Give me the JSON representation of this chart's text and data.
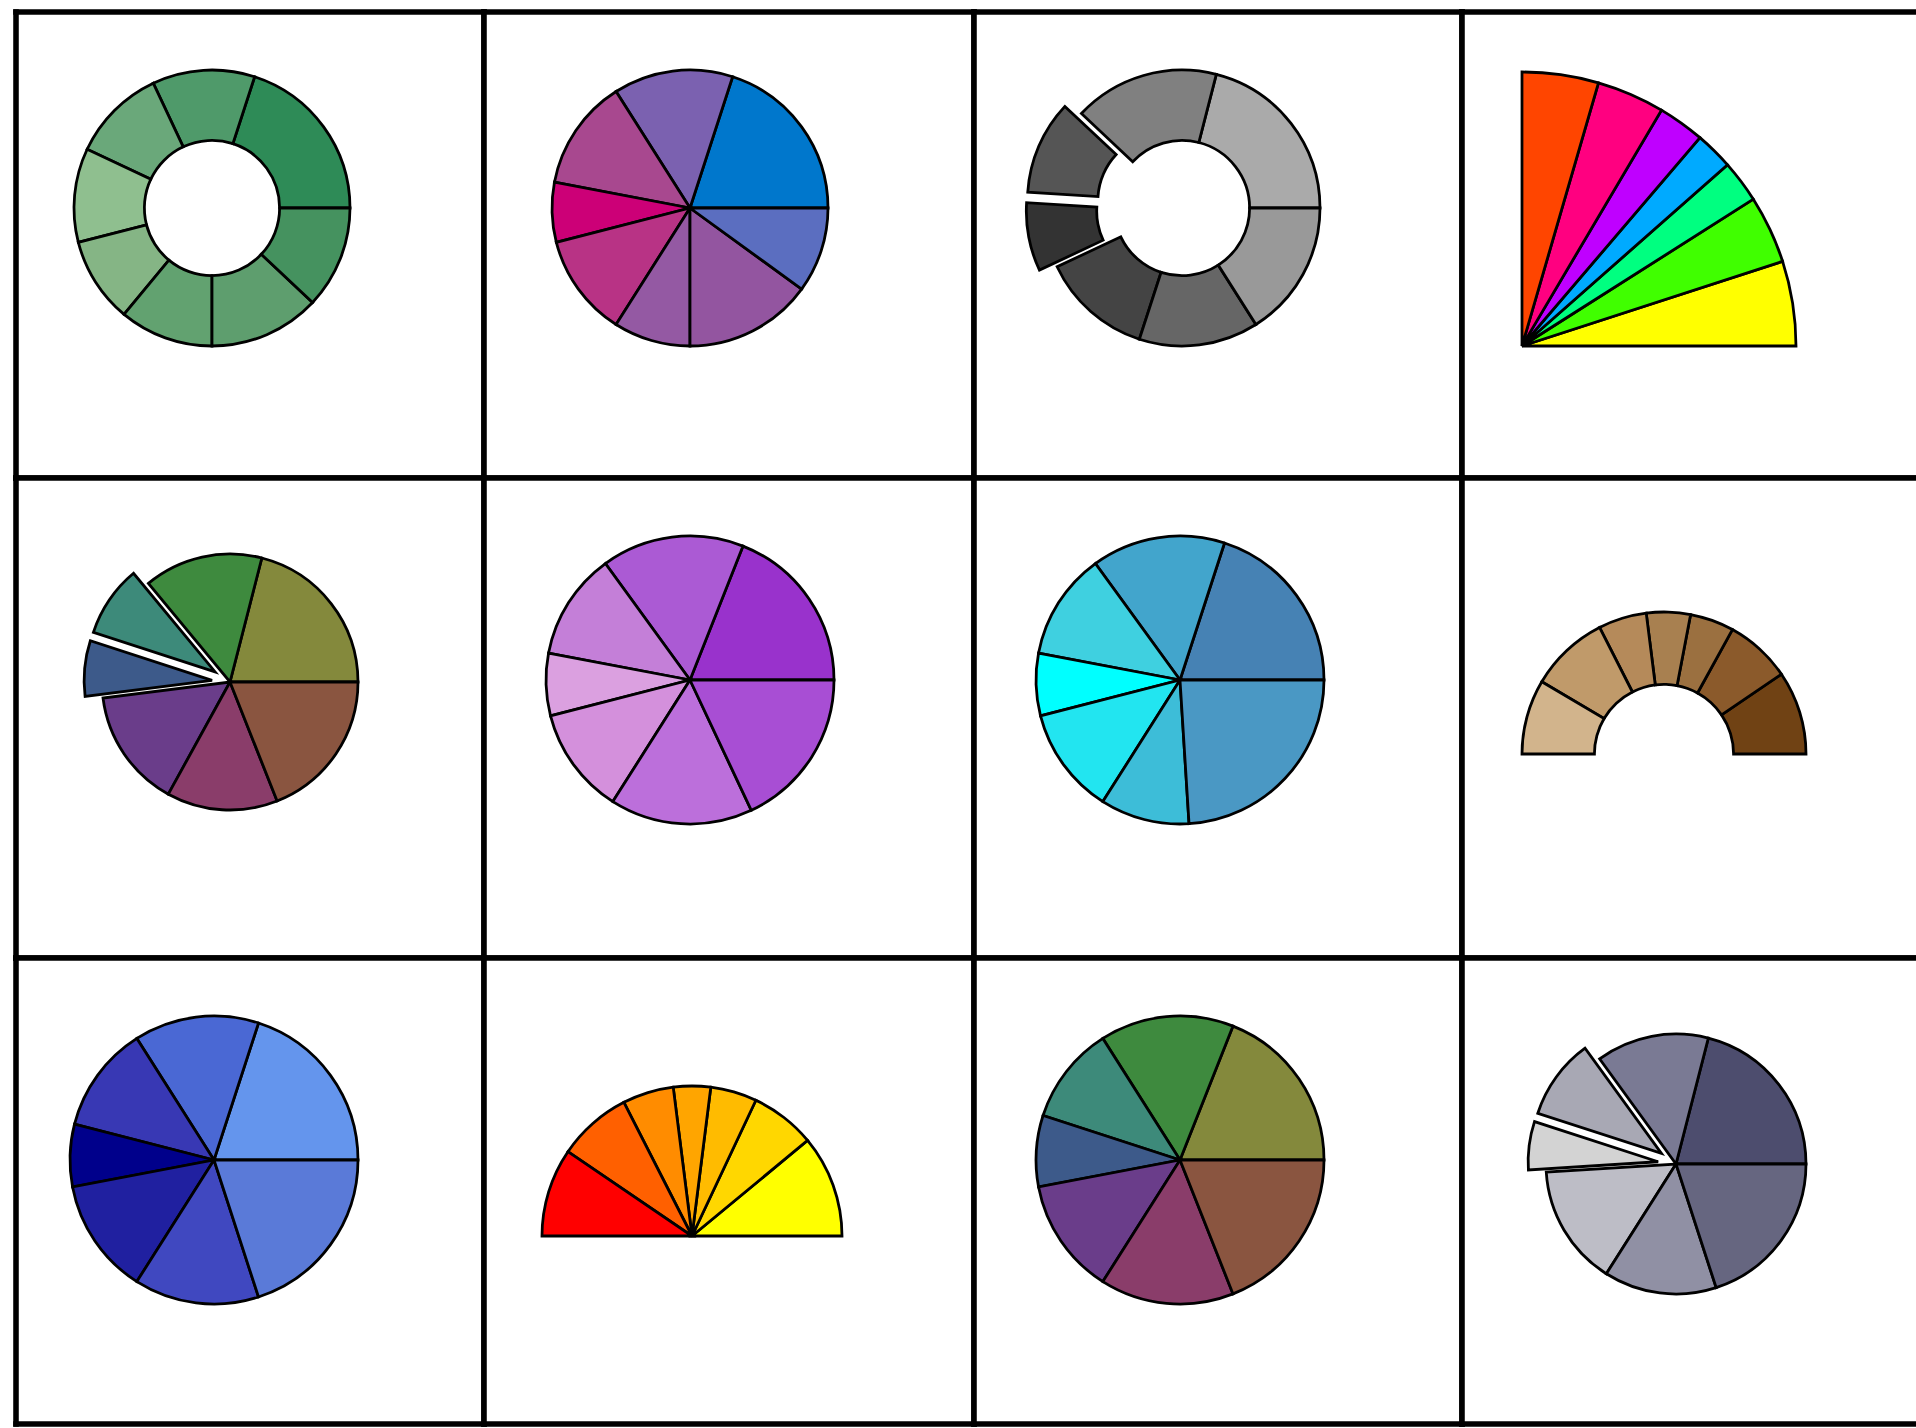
{
  "chart_data": [
    {
      "type": "donut",
      "categories": [
        null,
        null,
        null,
        null,
        null,
        null,
        null,
        null
      ],
      "values": [
        20,
        12,
        11,
        11,
        10,
        11,
        13,
        12
      ],
      "colors": [
        "#2e8b57",
        "#4f9a6a",
        "#6aa87a",
        "#8fbf8f",
        "#85b585",
        "#62a270",
        "#5e9e6e",
        "#45925f"
      ]
    },
    {
      "type": "pie",
      "categories": [
        null,
        null,
        null,
        null,
        null,
        null,
        null,
        null
      ],
      "values": [
        20,
        14,
        13,
        7,
        12,
        9,
        15,
        10
      ],
      "colors": [
        "#0077cc",
        "#7b61b0",
        "#a8488f",
        "#cc0077",
        "#b83385",
        "#9459a3",
        "#9355a0",
        "#5b6ec0"
      ]
    },
    {
      "type": "donut",
      "categories": [
        null,
        null,
        null,
        null,
        null,
        null,
        null
      ],
      "values": [
        21,
        17,
        11,
        8,
        13,
        14,
        16
      ],
      "colors": [
        "#aaaaaa",
        "#808080",
        "#555555",
        "#333333",
        "#444444",
        "#666666",
        "#999999"
      ]
    },
    {
      "type": "pie",
      "categories": [
        null,
        null,
        null,
        null,
        null,
        null,
        null
      ],
      "values": [
        20,
        16,
        10,
        9,
        11,
        16,
        18
      ],
      "colors": [
        "#ffff00",
        "#40ff00",
        "#00ff80",
        "#00aaff",
        "#bf00ff",
        "#ff0080",
        "#ff4500"
      ]
    },
    {
      "type": "pie",
      "categories": [
        null,
        null,
        null,
        null,
        null,
        null,
        null
      ],
      "values": [
        21,
        15,
        9,
        7,
        15,
        14,
        19
      ],
      "colors": [
        "#84893c",
        "#3e8a3e",
        "#3d8a7a",
        "#3d5a8a",
        "#6a3d8a",
        "#8a3d6a",
        "#8a5540"
      ]
    },
    {
      "type": "pie",
      "categories": [
        null,
        null,
        null,
        null,
        null,
        null,
        null
      ],
      "values": [
        19,
        16,
        12,
        7,
        12,
        16,
        18
      ],
      "colors": [
        "#9932cc",
        "#ab5ad4",
        "#c47fd8",
        "#dba0e0",
        "#d490dc",
        "#bc6fdb",
        "#a84ed4"
      ]
    },
    {
      "type": "pie",
      "categories": [
        null,
        null,
        null,
        null,
        null,
        null,
        null
      ],
      "values": [
        20,
        15,
        12,
        7,
        12,
        10,
        24
      ],
      "colors": [
        "#4682b4",
        "#42a5cc",
        "#3fd0e0",
        "#00ffff",
        "#22e5f0",
        "#3dbdd8",
        "#4a98c4"
      ]
    },
    {
      "type": "donut",
      "categories": [
        null,
        null,
        null,
        null,
        null,
        null,
        null
      ],
      "values": [
        19,
        15,
        10,
        10,
        11,
        18,
        17
      ],
      "colors": [
        "#704214",
        "#8b5a2b",
        "#9b7040",
        "#a88050",
        "#b58a5a",
        "#c09a6a",
        "#d2b48c"
      ]
    },
    {
      "type": "pie",
      "categories": [
        null,
        null,
        null,
        null,
        null,
        null,
        null
      ],
      "values": [
        20,
        14,
        12,
        7,
        13,
        14,
        20
      ],
      "colors": [
        "#6495ed",
        "#4a68d4",
        "#3838b4",
        "#00008b",
        "#2020a0",
        "#4048c0",
        "#5a7ad8"
      ]
    },
    {
      "type": "pie",
      "categories": [
        null,
        null,
        null,
        null,
        null,
        null,
        null
      ],
      "values": [
        22,
        14,
        10,
        8,
        11,
        16,
        19
      ],
      "colors": [
        "#ffff00",
        "#ffd700",
        "#ffbb00",
        "#ffa500",
        "#ff8c00",
        "#ff6000",
        "#ff0000"
      ]
    },
    {
      "type": "pie",
      "categories": [
        null,
        null,
        null,
        null,
        null,
        null,
        null
      ],
      "values": [
        19,
        15,
        11,
        8,
        13,
        15,
        19
      ],
      "colors": [
        "#84893c",
        "#3e8a3e",
        "#3d8a7a",
        "#3d5a8a",
        "#6a3d8a",
        "#8a3d6a",
        "#8a5540"
      ]
    },
    {
      "type": "pie",
      "categories": [
        null,
        null,
        null,
        null,
        null,
        null,
        null
      ],
      "values": [
        21,
        14,
        10,
        6,
        15,
        14,
        20
      ],
      "colors": [
        "#4d4d6e",
        "#7a7a94",
        "#a8a8b4",
        "#d3d3d3",
        "#bdbdc6",
        "#9090a4",
        "#666680"
      ]
    }
  ]
}
